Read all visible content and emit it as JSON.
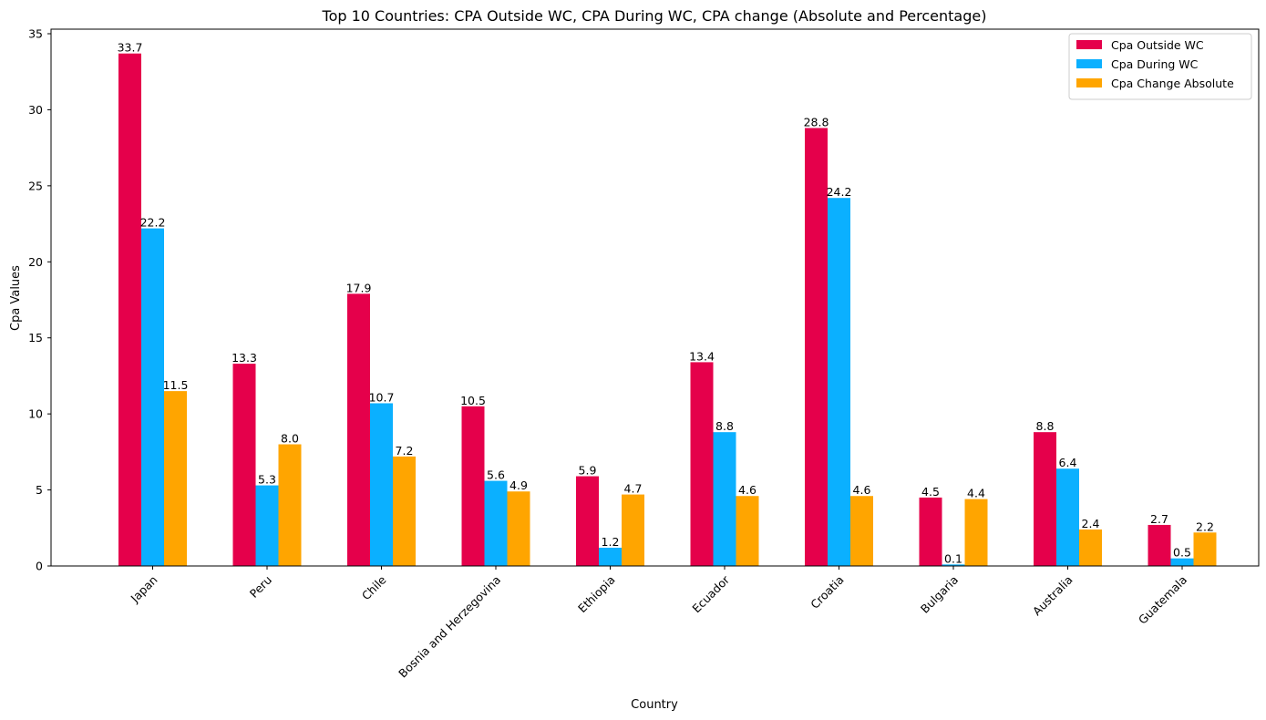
{
  "chart_data": {
    "type": "bar",
    "title": "Top 10 Countries: CPA Outside WC, CPA During WC, CPA change (Absolute and Percentage)",
    "xlabel": "Country",
    "ylabel": "Cpa Values",
    "ylim": [
      0,
      35.3
    ],
    "yticks": [
      0,
      5,
      10,
      15,
      20,
      25,
      30,
      35
    ],
    "grid": false,
    "legend_position": "top-right",
    "categories": [
      "Japan",
      "Peru",
      "Chile",
      "Bosnia and Herzegovina",
      "Ethiopia",
      "Ecuador",
      "Croatia",
      "Bulgaria",
      "Australia",
      "Guatemala"
    ],
    "series": [
      {
        "name": "Cpa Outside WC",
        "color": "#e5004b",
        "values": [
          33.7,
          13.3,
          17.9,
          10.5,
          5.9,
          13.4,
          28.8,
          4.5,
          8.8,
          2.7
        ],
        "labels": [
          "33.7",
          "13.3",
          "17.9",
          "10.5",
          "5.9",
          "13.4",
          "28.8",
          "4.5",
          "8.8",
          "2.7"
        ]
      },
      {
        "name": "Cpa During WC",
        "color": "#0bb0ff",
        "values": [
          22.2,
          5.3,
          10.7,
          5.6,
          1.2,
          8.8,
          24.2,
          0.1,
          6.4,
          0.5
        ],
        "labels": [
          "22.2",
          "5.3",
          "10.7",
          "5.6",
          "1.2",
          "8.8",
          "24.2",
          "0.1",
          "6.4",
          "0.5"
        ]
      },
      {
        "name": "Cpa Change Absolute",
        "color": "#ffa500",
        "values": [
          11.5,
          8.0,
          7.2,
          4.9,
          4.7,
          4.6,
          4.6,
          4.4,
          2.4,
          2.2
        ],
        "labels": [
          "11.5",
          "8.0",
          "7.2",
          "4.9",
          "4.7",
          "4.6",
          "4.6",
          "4.4",
          "2.4",
          "2.2"
        ]
      }
    ]
  }
}
